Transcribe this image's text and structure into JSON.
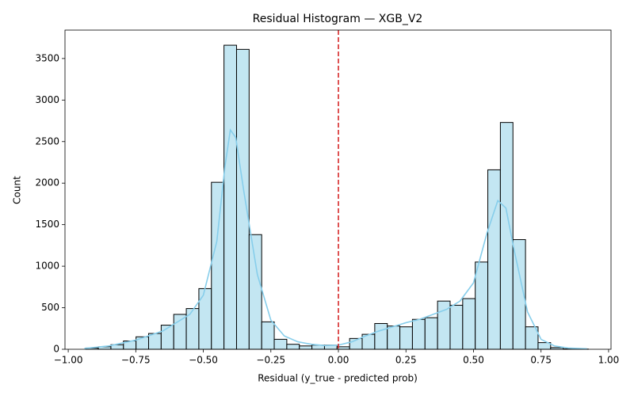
{
  "chart_data": {
    "type": "histogram",
    "title": "Residual Histogram — XGB_V2",
    "xlabel": "Residual (y_true - predicted prob)",
    "ylabel": "Count",
    "bins": [
      -0.935,
      -0.8885,
      -0.842,
      -0.7955,
      -0.749,
      -0.7025,
      -0.656,
      -0.6095,
      -0.563,
      -0.5165,
      -0.47,
      -0.4235,
      -0.377,
      -0.3305,
      -0.284,
      -0.2375,
      -0.191,
      -0.1445,
      -0.098,
      -0.0515,
      -0.005,
      0.0415,
      0.088,
      0.1345,
      0.181,
      0.2275,
      0.274,
      0.3205,
      0.367,
      0.4135,
      0.46,
      0.5065,
      0.553,
      0.5995,
      0.646,
      0.6925,
      0.739,
      0.7855,
      0.832,
      0.8785,
      0.925
    ],
    "values": [
      15,
      30,
      55,
      100,
      150,
      190,
      290,
      420,
      490,
      730,
      2010,
      3660,
      3610,
      1380,
      330,
      120,
      60,
      40,
      50,
      50,
      30,
      130,
      180,
      310,
      280,
      270,
      360,
      380,
      580,
      530,
      610,
      1050,
      2160,
      2730,
      1320,
      270,
      80,
      20,
      5,
      2
    ],
    "color": "#c3e6f2",
    "edgecolor": "#000000",
    "kde": {
      "color": "#87ceeb",
      "x": [
        -0.94,
        -0.85,
        -0.75,
        -0.65,
        -0.55,
        -0.5,
        -0.45,
        -0.42,
        -0.4,
        -0.38,
        -0.35,
        -0.3,
        -0.25,
        -0.2,
        -0.15,
        -0.1,
        -0.05,
        0,
        0.05,
        0.1,
        0.15,
        0.2,
        0.25,
        0.3,
        0.35,
        0.4,
        0.45,
        0.5,
        0.55,
        0.59,
        0.62,
        0.65,
        0.7,
        0.75,
        0.8,
        0.85,
        0.92
      ],
      "values": [
        10,
        40,
        110,
        220,
        420,
        650,
        1300,
        2200,
        2640,
        2550,
        1900,
        900,
        350,
        160,
        90,
        60,
        45,
        50,
        90,
        160,
        220,
        270,
        320,
        360,
        420,
        480,
        580,
        800,
        1400,
        1790,
        1700,
        1200,
        450,
        120,
        40,
        15,
        5
      ]
    },
    "vline": {
      "x": 0,
      "color": "#d62728",
      "dashed": true
    },
    "xlim": [
      -1.012,
      1.009
    ],
    "ylim": [
      0,
      3842
    ],
    "xticks": [
      {
        "value": -1,
        "label": "−1.00"
      },
      {
        "value": -0.75,
        "label": "−0.75"
      },
      {
        "value": -0.5,
        "label": "−0.50"
      },
      {
        "value": -0.25,
        "label": "−0.25"
      },
      {
        "value": 0,
        "label": "0.00"
      },
      {
        "value": 0.25,
        "label": "0.25"
      },
      {
        "value": 0.5,
        "label": "0.50"
      },
      {
        "value": 0.75,
        "label": "0.75"
      },
      {
        "value": 1,
        "label": "1.00"
      }
    ],
    "yticks": [
      0,
      500,
      1000,
      1500,
      2000,
      2500,
      3000,
      3500
    ],
    "grid": false
  }
}
